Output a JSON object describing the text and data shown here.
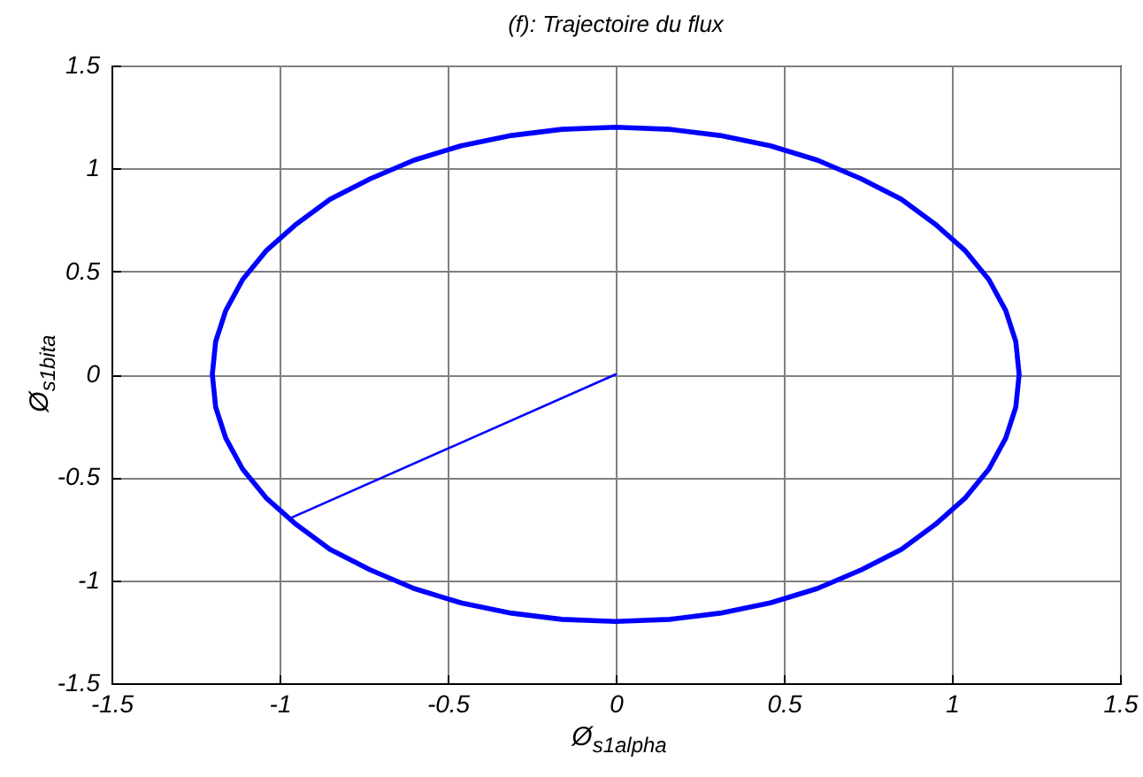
{
  "chart_data": {
    "type": "line",
    "title": "(f): Trajectoire du flux",
    "xlabel": "Ø$_{s1alpha}$",
    "ylabel": "Ø$_{s1bita}$",
    "xlim": [
      -1.5,
      1.5
    ],
    "ylim": [
      -1.5,
      1.5
    ],
    "xticks": [
      -1.5,
      -1,
      -0.5,
      0,
      0.5,
      1,
      1.5
    ],
    "yticks": [
      -1.5,
      -1,
      -0.5,
      0,
      0.5,
      1,
      1.5
    ],
    "grid": true,
    "series": [
      {
        "color": "#0000ff",
        "x": [
          0,
          -0.97
        ],
        "values": [
          0,
          -0.7
        ]
      },
      {
        "color": "#0000ff",
        "x": [
          1.2,
          1.19,
          1.16,
          1.11,
          1.04,
          0.95,
          0.85,
          0.73,
          0.6,
          0.46,
          0.31,
          0.16,
          0,
          -0.16,
          -0.31,
          -0.46,
          -0.6,
          -0.73,
          -0.85,
          -0.95,
          -1.04,
          -1.11,
          -1.16,
          -1.19,
          -1.2,
          -1.19,
          -1.16,
          -1.11,
          -1.04,
          -0.95,
          -0.85,
          -0.73,
          -0.6,
          -0.46,
          -0.31,
          -0.16,
          0,
          0.16,
          0.31,
          0.46,
          0.6,
          0.73,
          0.85,
          0.95,
          1.04,
          1.11,
          1.16,
          1.19,
          1.2,
          1.19,
          1.16,
          1.11,
          1.04,
          0.95
        ],
        "values": [
          0,
          0.16,
          0.31,
          0.46,
          0.6,
          0.73,
          0.85,
          0.95,
          1.04,
          1.11,
          1.16,
          1.19,
          1.2,
          1.19,
          1.16,
          1.11,
          1.04,
          0.95,
          0.85,
          0.73,
          0.6,
          0.46,
          0.31,
          0.16,
          0,
          -0.16,
          -0.31,
          -0.46,
          -0.6,
          -0.73,
          -0.85,
          -0.95,
          -1.04,
          -1.11,
          -1.16,
          -1.19,
          -1.2,
          -1.19,
          -1.16,
          -1.11,
          -1.04,
          -0.95,
          -0.85,
          -0.73,
          -0.6,
          -0.46,
          -0.31,
          -0.16,
          0,
          0.16,
          0.31,
          0.46,
          0.6,
          0.73
        ]
      }
    ]
  }
}
